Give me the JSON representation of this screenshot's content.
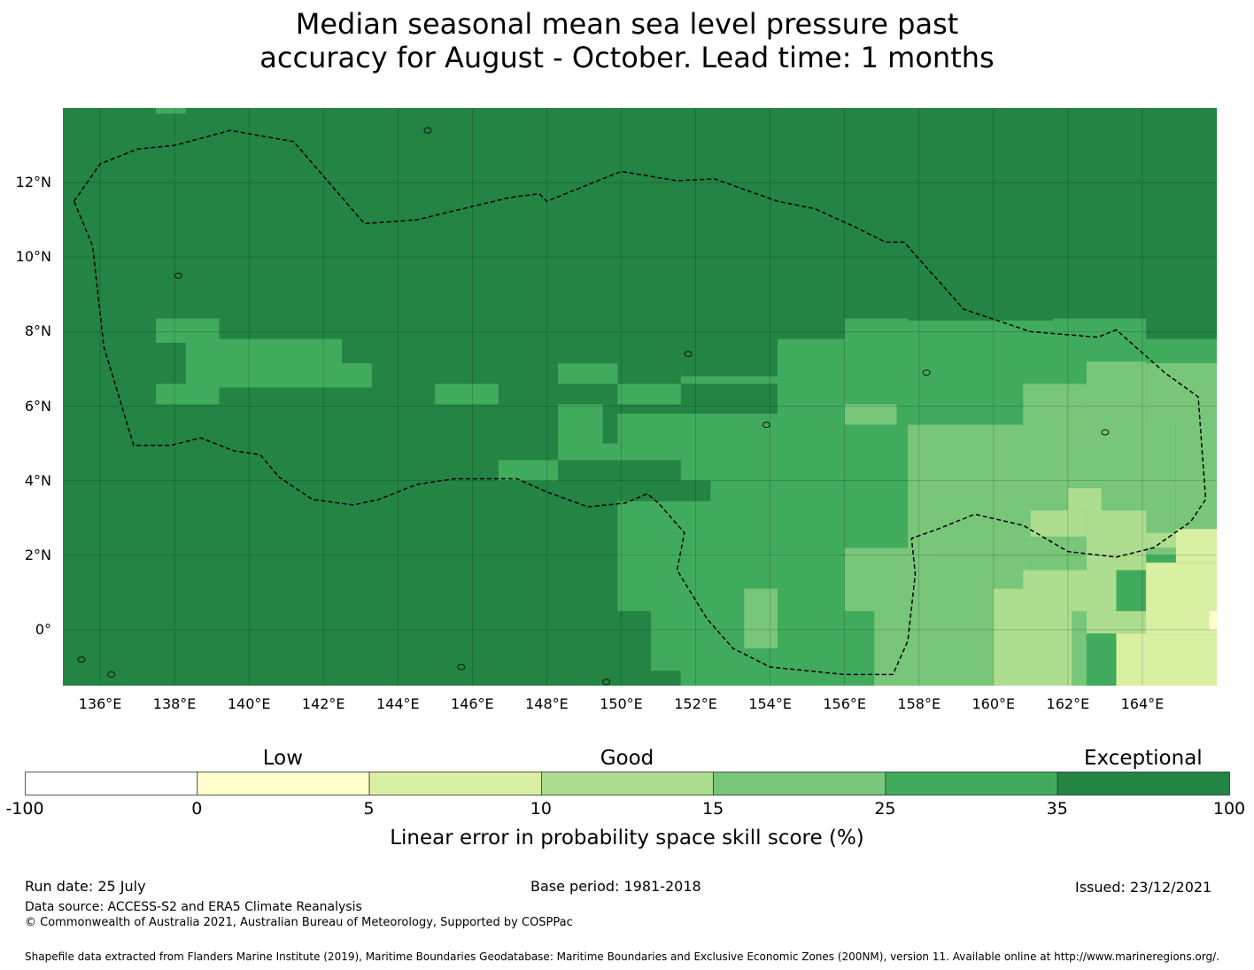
{
  "title_line1": "Median seasonal mean sea level pressure past",
  "title_line2": "accuracy for August - October. Lead time: 1 months",
  "map": {
    "type": "heatmap",
    "lon_range": [
      135,
      166
    ],
    "lat_range": [
      -1.5,
      14
    ],
    "lon_ticks": [
      136,
      138,
      140,
      142,
      144,
      146,
      148,
      150,
      152,
      154,
      156,
      158,
      160,
      162,
      164
    ],
    "lon_tick_labels": [
      "136°E",
      "138°E",
      "140°E",
      "142°E",
      "144°E",
      "146°E",
      "148°E",
      "150°E",
      "152°E",
      "154°E",
      "156°E",
      "158°E",
      "160°E",
      "162°E",
      "164°E"
    ],
    "lat_ticks": [
      12,
      10,
      8,
      6,
      4,
      2,
      0
    ],
    "lat_tick_labels": [
      "12°N",
      "10°N",
      "8°N",
      "6°N",
      "4°N",
      "2°N",
      "0°"
    ],
    "gridlines": true,
    "boundary": "dashed",
    "colors": {
      "exceptional": "#238443",
      "good_high": "#41ab5d",
      "good_mid": "#78c679",
      "good_low": "#addd8e",
      "low_high": "#d9f0a3",
      "low": "#ffffcc",
      "none": "#ffffff"
    }
  },
  "colorbar": {
    "categories": [
      {
        "label": "Low",
        "center": 2.5
      },
      {
        "label": "Good",
        "center": 15
      },
      {
        "label": "Exceptional",
        "center": 67.5
      }
    ],
    "bins": [
      {
        "from": "-100",
        "to": "0",
        "color": "#ffffff"
      },
      {
        "from": "0",
        "to": "5",
        "color": "#ffffcc"
      },
      {
        "from": "5",
        "to": "10",
        "color": "#d9f0a3"
      },
      {
        "from": "10",
        "to": "15",
        "color": "#addd8e"
      },
      {
        "from": "15",
        "to": "25",
        "color": "#78c679"
      },
      {
        "from": "25",
        "to": "35",
        "color": "#41ab5d"
      },
      {
        "from": "35",
        "to": "100",
        "color": "#238443"
      }
    ],
    "tick_labels": [
      "-100",
      "0",
      "5",
      "10",
      "15",
      "25",
      "35",
      "100"
    ],
    "title": "Linear error in probability space skill score (%)"
  },
  "footer": {
    "run_date": "Run date: 25 July",
    "base_period": "Base period: 1981-2018",
    "issued": "Issued: 23/12/2021",
    "data_source": "Data source: ACCESS-S2 and ERA5 Climate Reanalysis",
    "copyright": "© Commonwealth of Australia 2021, Australian Bureau of Meteorology, Supported by COSPPac",
    "shapefile": "Shapefile data extracted from Flanders Marine Institute (2019), Maritime Boundaries Geodatabase: Maritime Boundaries and Exclusive Economic Zones (200NM), version 11. Available online at http://www.marineregions.org/."
  }
}
